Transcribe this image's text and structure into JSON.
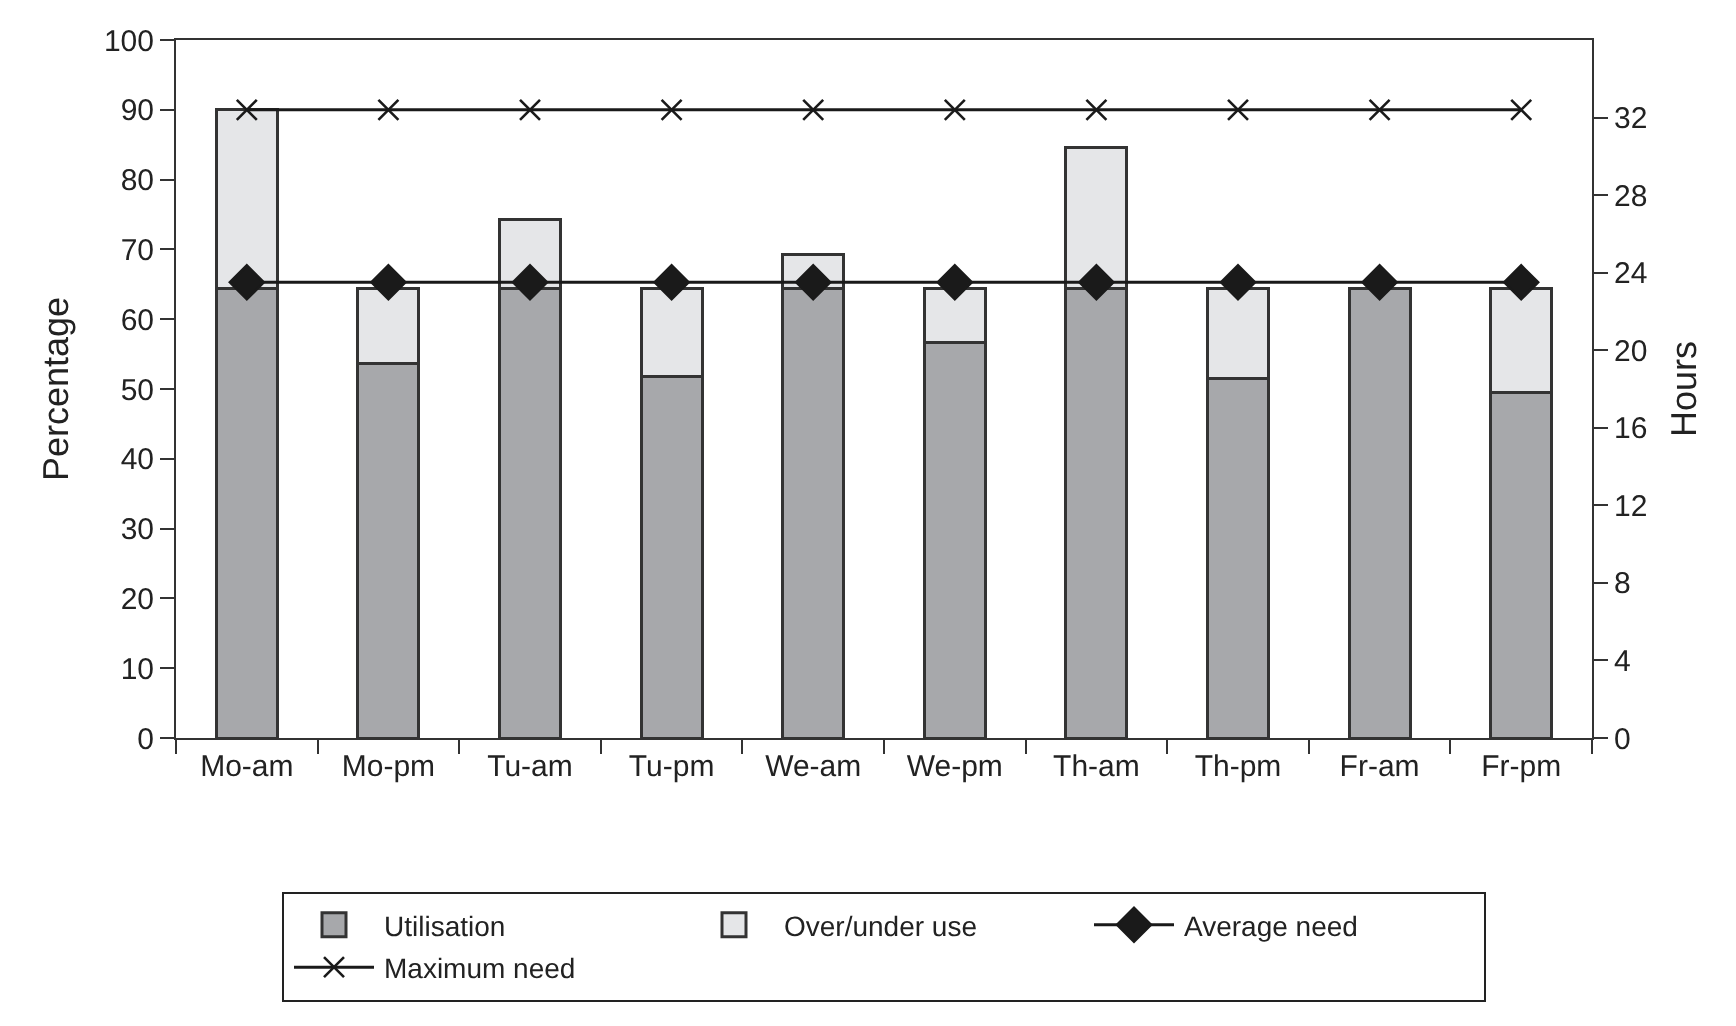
{
  "chart_data": {
    "type": "bar",
    "stacked": true,
    "ylabel": "Percentage",
    "y2label": "Hours",
    "categories": [
      "Mo-am",
      "Mo-pm",
      "Tu-am",
      "Tu-pm",
      "We-am",
      "We-pm",
      "Th-am",
      "Th-pm",
      "Fr-am",
      "Fr-pm"
    ],
    "series": [
      {
        "name": "Utilisation",
        "color": "#a7a8ab",
        "values": [
          64.4,
          53.7,
          64.4,
          51.8,
          64.4,
          56.7,
          64.4,
          51.5,
          64.4,
          49.5
        ]
      },
      {
        "name": "Over/under use",
        "color": "#e5e6e8",
        "values": [
          25.6,
          10.7,
          9.9,
          12.6,
          4.8,
          7.7,
          20.2,
          12.9,
          0,
          14.9
        ]
      },
      {
        "name": "Average need",
        "type": "line",
        "axis": "y2",
        "marker": "diamond",
        "color": "#1a1a1a",
        "values": [
          23.5,
          23.5,
          23.5,
          23.5,
          23.5,
          23.5,
          23.5,
          23.5,
          23.5,
          23.5
        ]
      },
      {
        "name": "Maximum need",
        "type": "line",
        "axis": "y2",
        "marker": "cross",
        "color": "#1a1a1a",
        "values": [
          32.4,
          32.4,
          32.4,
          32.4,
          32.4,
          32.4,
          32.4,
          32.4,
          32.4,
          32.4
        ]
      }
    ],
    "ylim": [
      0,
      100
    ],
    "yticks": [
      0,
      10,
      20,
      30,
      40,
      50,
      60,
      70,
      80,
      90,
      100
    ],
    "y2lim": [
      0,
      36
    ],
    "y2ticks": [
      0,
      4,
      8,
      12,
      16,
      20,
      24,
      28,
      32
    ],
    "legend": "bottom"
  }
}
